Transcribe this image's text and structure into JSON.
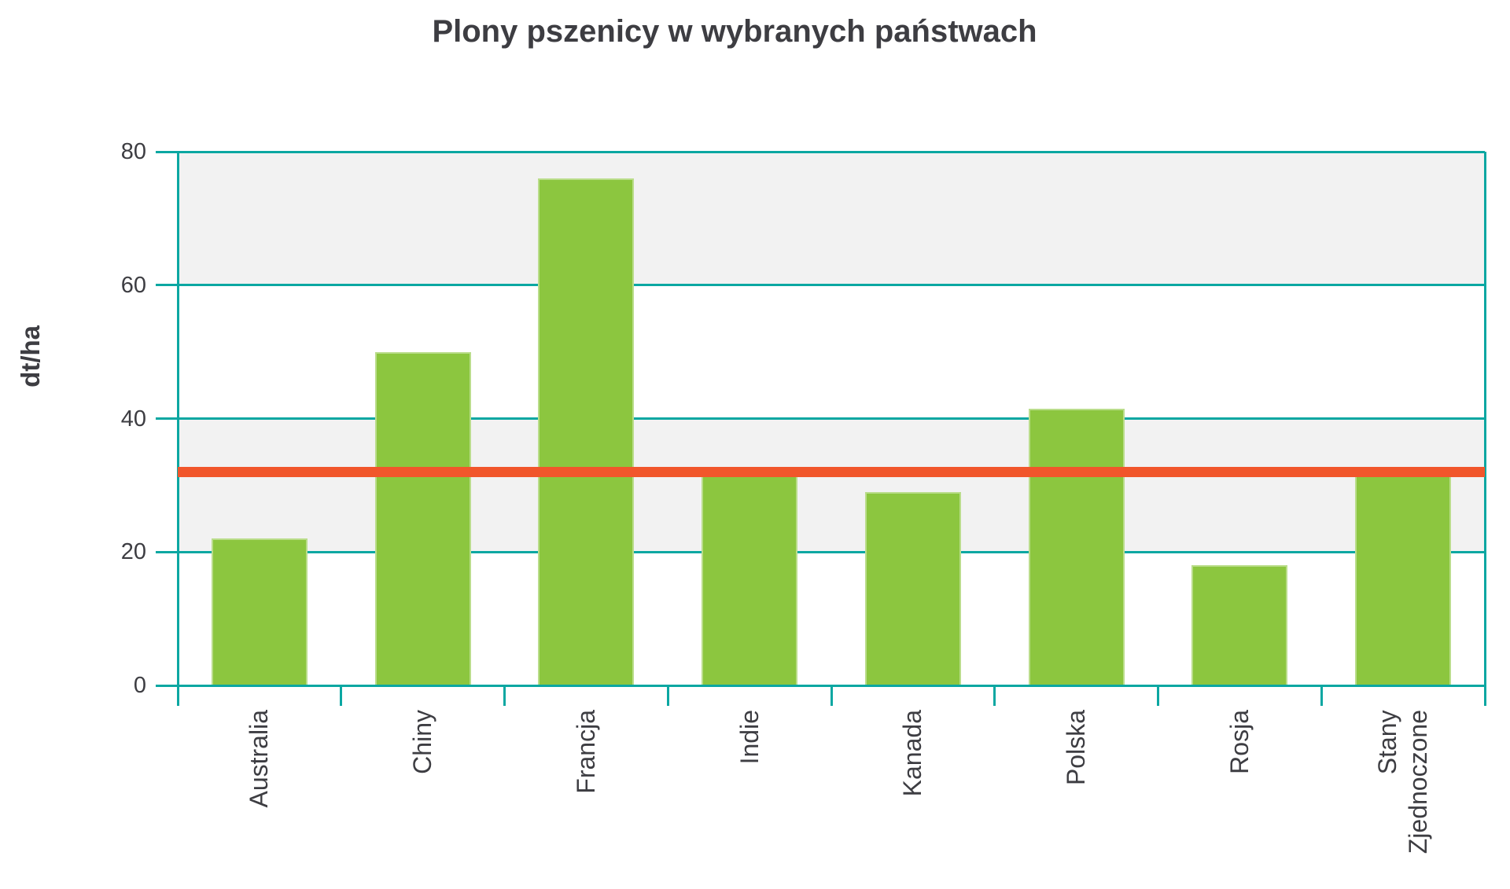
{
  "chart_data": {
    "type": "bar",
    "title": "Plony pszenicy w wybranych państwach",
    "ylabel": "dt/ha",
    "xlabel": "",
    "categories": [
      "Australia",
      "Chiny",
      "Francja",
      "Indie",
      "Kanada",
      "Polska",
      "Rosja",
      "Stany Zjednoczone"
    ],
    "category_display_lines": [
      [
        "Australia"
      ],
      [
        "Chiny"
      ],
      [
        "Francja"
      ],
      [
        "Indie"
      ],
      [
        "Kanada"
      ],
      [
        "Polska"
      ],
      [
        "Rosja"
      ],
      [
        "Stany",
        "Zjednoczone"
      ]
    ],
    "values": [
      22,
      50,
      76,
      31.5,
      29,
      41.5,
      18,
      31.5
    ],
    "ylim": [
      0,
      80
    ],
    "yticks": [
      0,
      20,
      40,
      60,
      80
    ],
    "grid": true,
    "legend": false,
    "reference_line": {
      "value": 32
    },
    "colors": {
      "bar": "#8cc63f",
      "reference_line": "#f1562b",
      "axis": "#0ba7a2",
      "band": "#f2f2f2",
      "text": "#3d3d42",
      "background": "#ffffff"
    }
  }
}
